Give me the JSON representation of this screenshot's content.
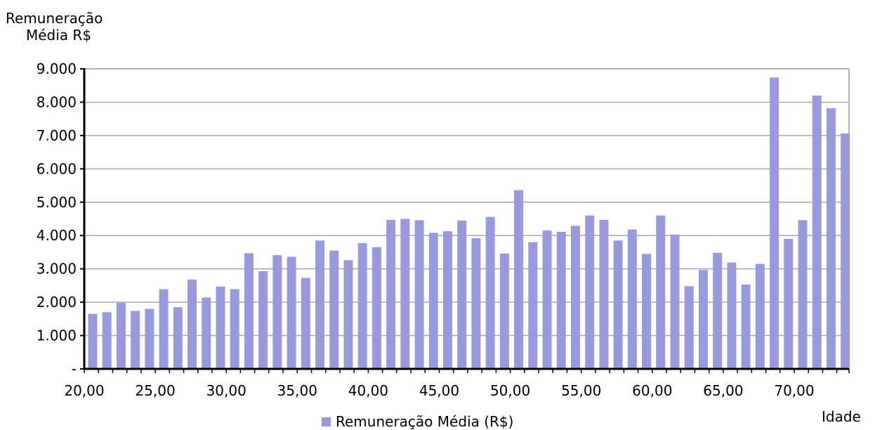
{
  "chart_data": {
    "type": "bar",
    "ylabel_line1": "Remuneração",
    "ylabel_line2": "Média R$",
    "xlabel": "Idade",
    "ylim": [
      0,
      9000
    ],
    "xlim": [
      20,
      73.5
    ],
    "grid": true,
    "legend_position": "bottom",
    "bar_color": "#9999dd",
    "y_tick_labels": [
      "-",
      "1.000",
      "2.000",
      "3.000",
      "4.000",
      "5.000",
      "6.000",
      "7.000",
      "8.000",
      "9.000"
    ],
    "x_tick_labels": [
      "20,00",
      "25,00",
      "30,00",
      "35,00",
      "40,00",
      "45,00",
      "50,00",
      "55,00",
      "60,00",
      "65,00",
      "70,00"
    ],
    "x": [
      20,
      21,
      22,
      23,
      24,
      25,
      26,
      27,
      28,
      29,
      30,
      31,
      32,
      33,
      34,
      35,
      36,
      37,
      38,
      39,
      40,
      41,
      42,
      43,
      44,
      45,
      46,
      47,
      48,
      49,
      50,
      51,
      52,
      53,
      54,
      55,
      56,
      57,
      58,
      59,
      60,
      61,
      62,
      63,
      64,
      65,
      66,
      67,
      68,
      69,
      70,
      71,
      72,
      73
    ],
    "series": [
      {
        "name": "Remuneração Média (R$)",
        "values": [
          1650,
          1700,
          1980,
          1740,
          1800,
          2390,
          1850,
          2680,
          2140,
          2470,
          2390,
          3470,
          2930,
          3410,
          3360,
          2730,
          3850,
          3550,
          3260,
          3770,
          3650,
          4470,
          4500,
          4460,
          4080,
          4130,
          4450,
          3920,
          4560,
          3460,
          5360,
          3800,
          4150,
          4110,
          4290,
          4600,
          4470,
          3850,
          4180,
          3450,
          4600,
          4030,
          2480,
          2970,
          3480,
          3190,
          2530,
          3150,
          8740,
          3900,
          4460,
          8200,
          7820,
          7060
        ]
      }
    ]
  }
}
